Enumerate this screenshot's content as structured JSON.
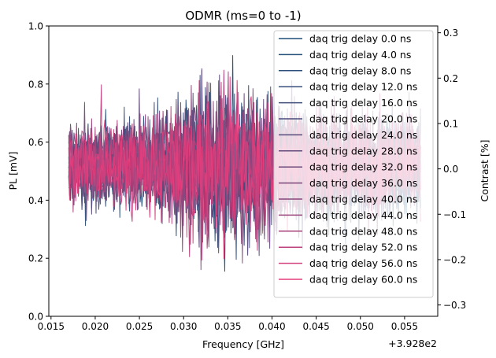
{
  "chart_data": {
    "type": "line",
    "title": "ODMR (ms=0 to -1)",
    "xlabel": "Frequency [GHz]",
    "ylabel": "PL [mV]",
    "y2label": "Contrast [%]",
    "x_offset_label": "+3.928e2",
    "xlim": [
      0.01475,
      0.05875
    ],
    "ylim": [
      0.0,
      1.0
    ],
    "y2lim": [
      -0.325,
      0.315
    ],
    "x_ticks": [
      0.015,
      0.02,
      0.025,
      0.03,
      0.035,
      0.04,
      0.045,
      0.05,
      0.055
    ],
    "x_tick_labels": [
      "0.015",
      "0.020",
      "0.025",
      "0.030",
      "0.035",
      "0.040",
      "0.045",
      "0.050",
      "0.055"
    ],
    "y_ticks": [
      0.0,
      0.2,
      0.4,
      0.6,
      0.8,
      1.0
    ],
    "y_tick_labels": [
      "0.0",
      "0.2",
      "0.4",
      "0.6",
      "0.8",
      "1.0"
    ],
    "y2_ticks": [
      -0.3,
      -0.2,
      -0.1,
      0.0,
      0.1,
      0.2,
      0.3
    ],
    "y2_tick_labels": [
      "−0.3",
      "−0.2",
      "−0.1",
      "0.0",
      "0.1",
      "0.2",
      "0.3"
    ],
    "x_range": [
      0.017,
      0.0568
    ],
    "points_per_series": 400,
    "noise_profile": [
      [
        0.017,
        0.6
      ],
      [
        0.028,
        0.85
      ],
      [
        0.031,
        1.25
      ],
      [
        0.036,
        1.25
      ],
      [
        0.04,
        1.0
      ],
      [
        0.045,
        0.85
      ],
      [
        0.0568,
        0.8
      ]
    ],
    "legend_position": "upper right",
    "grid": false,
    "series": [
      {
        "name": "daq trig delay 0.0 ns",
        "color": "#1f4e79"
      },
      {
        "name": "daq trig delay 4.0 ns",
        "color": "#25507a"
      },
      {
        "name": "daq trig delay 8.0 ns",
        "color": "#2c4f7b"
      },
      {
        "name": "daq trig delay 12.0 ns",
        "color": "#354e7b"
      },
      {
        "name": "daq trig delay 16.0 ns",
        "color": "#3f4d7b"
      },
      {
        "name": "daq trig delay 20.0 ns",
        "color": "#4a4c7b"
      },
      {
        "name": "daq trig delay 24.0 ns",
        "color": "#564b7b"
      },
      {
        "name": "daq trig delay 28.0 ns",
        "color": "#624a7b"
      },
      {
        "name": "daq trig delay 32.0 ns",
        "color": "#6e497b"
      },
      {
        "name": "daq trig delay 36.0 ns",
        "color": "#7c487b"
      },
      {
        "name": "daq trig delay 40.0 ns",
        "color": "#8a467b"
      },
      {
        "name": "daq trig delay 44.0 ns",
        "color": "#9a457c"
      },
      {
        "name": "daq trig delay 48.0 ns",
        "color": "#aa437c"
      },
      {
        "name": "daq trig delay 52.0 ns",
        "color": "#bd417c"
      },
      {
        "name": "daq trig delay 56.0 ns",
        "color": "#d23f7c"
      },
      {
        "name": "daq trig delay 60.0 ns",
        "color": "#e53d7c"
      }
    ],
    "y2_label_color": "#4472c4"
  }
}
